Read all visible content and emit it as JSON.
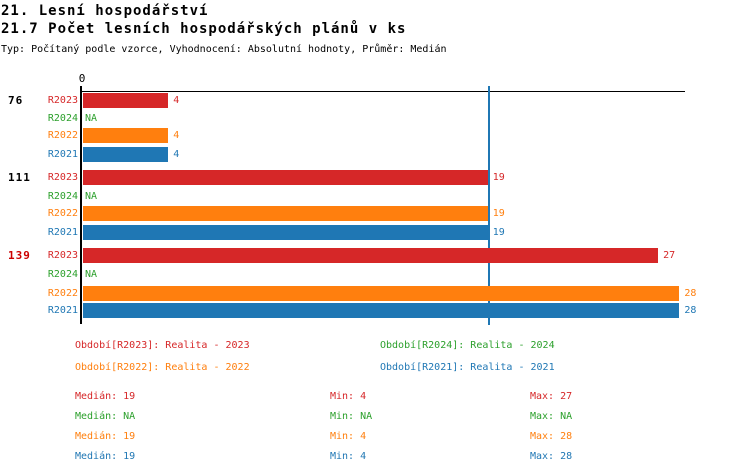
{
  "header": {
    "title_line1": "21. Lesní hospodářství",
    "title_line2": "21.7 Počet lesních hospodářských plánů v ks",
    "subtitle": "Typ: Počítaný podle vzorce, Vyhodnocení: Absolutní hodnoty, Průměr: Medián"
  },
  "chart_data": {
    "type": "bar",
    "orientation": "horizontal",
    "title": "21.7 Počet lesních hospodářských plánů v ks",
    "categories": [
      "76",
      "111",
      "139"
    ],
    "category_label_colors": [
      "#000000",
      "#000000",
      "#cc0000"
    ],
    "series": [
      {
        "name": "R2023",
        "color": "#d62728",
        "values": [
          4,
          19,
          27
        ],
        "display": [
          "4",
          "19",
          "27"
        ]
      },
      {
        "name": "R2024",
        "color": "#2ca02c",
        "values": [
          null,
          null,
          null
        ],
        "display": [
          "NA",
          "NA",
          "NA"
        ]
      },
      {
        "name": "R2022",
        "color": "#ff7f0e",
        "values": [
          4,
          19,
          28
        ],
        "display": [
          "4",
          "19",
          "28"
        ]
      },
      {
        "name": "R2021",
        "color": "#1f77b4",
        "values": [
          4,
          19,
          28
        ],
        "display": [
          "4",
          "19",
          "28"
        ]
      }
    ],
    "na_text": "NA",
    "x_axis": {
      "origin_label": "0",
      "min": 0,
      "max": 28.3,
      "grid": false
    },
    "median_line": {
      "value": 19,
      "color": "#1f77b4"
    },
    "legend_position": "bottom"
  },
  "legend": {
    "items": [
      {
        "series": "R2023",
        "text": "Období[R2023]: Realita - 2023",
        "color": "#d62728"
      },
      {
        "series": "R2024",
        "text": "Období[R2024]: Realita - 2024",
        "color": "#2ca02c"
      },
      {
        "series": "R2022",
        "text": "Období[R2022]: Realita - 2022",
        "color": "#ff7f0e"
      },
      {
        "series": "R2021",
        "text": "Období[R2021]: Realita - 2021",
        "color": "#1f77b4"
      }
    ]
  },
  "stats": {
    "median_label": "Medián",
    "min_label": "Min",
    "max_label": "Max",
    "rows": [
      {
        "series": "R2023",
        "color": "#d62728",
        "median": "19",
        "min": "4",
        "max": "27"
      },
      {
        "series": "R2024",
        "color": "#2ca02c",
        "median": "NA",
        "min": "NA",
        "max": "NA"
      },
      {
        "series": "R2022",
        "color": "#ff7f0e",
        "median": "19",
        "min": "4",
        "max": "28"
      },
      {
        "series": "R2021",
        "color": "#1f77b4",
        "median": "19",
        "min": "4",
        "max": "28"
      }
    ]
  },
  "colors": {
    "axis": "#000000",
    "background": "#ffffff",
    "highlight_category": "#cc0000"
  }
}
